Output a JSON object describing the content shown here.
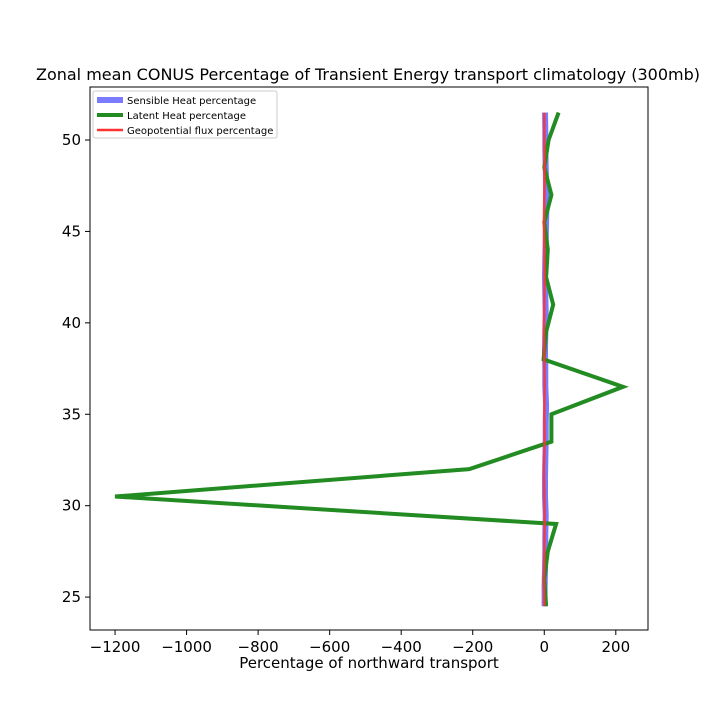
{
  "chart_data": {
    "type": "line",
    "title": "Zonal mean CONUS Percentage of Transient Energy transport climatology (300mb)",
    "xlabel": "Percentage of northward transport",
    "ylabel": "",
    "xlim": [
      -1270,
      290
    ],
    "ylim": [
      23.2,
      52.9
    ],
    "xticks": [
      -1200,
      -1000,
      -800,
      -600,
      -400,
      -200,
      0,
      200
    ],
    "xtick_labels": [
      "−1200",
      "−1000",
      "−800",
      "−600",
      "−400",
      "−200",
      "0",
      "200"
    ],
    "yticks": [
      25,
      30,
      35,
      40,
      45,
      50
    ],
    "ytick_labels": [
      "25",
      "30",
      "35",
      "40",
      "45",
      "50"
    ],
    "grid": false,
    "legend_position": "top-left",
    "series": [
      {
        "name": "Sensible Heat percentage",
        "color": "#7b7bff",
        "x": [
          1,
          1,
          2,
          3,
          3,
          4,
          2,
          2,
          3,
          4,
          4,
          5,
          3,
          3,
          2,
          3,
          4,
          3,
          2,
          3,
          4,
          5,
          6,
          5,
          4,
          3,
          3,
          2
        ],
        "y": [
          24.5,
          25.5,
          26.5,
          27.5,
          28.5,
          29.5,
          30.5,
          31.5,
          32.5,
          33.5,
          34.5,
          35.5,
          36.5,
          37.5,
          38.5,
          39.5,
          40.5,
          41.5,
          42.5,
          43.5,
          44.5,
          45.5,
          46.5,
          47.5,
          48.5,
          49.5,
          50.5,
          51.5
        ]
      },
      {
        "name": "Latent Heat percentage",
        "color": "#228b22",
        "x": [
          5,
          0,
          10,
          33,
          -1200,
          -210,
          20,
          20,
          220,
          -2,
          5,
          25,
          5,
          10,
          0,
          20,
          0,
          12,
          40
        ],
        "y": [
          24.5,
          26,
          27.5,
          29,
          30.5,
          32,
          33.5,
          35,
          36.5,
          38,
          39.5,
          41,
          42.5,
          44,
          45.5,
          47,
          48.5,
          50,
          51.5
        ]
      },
      {
        "name": "Geopotential flux percentage",
        "color": "#ff3333",
        "x": [
          0,
          -1,
          0,
          1,
          0,
          -1,
          1,
          0,
          1,
          0,
          -1,
          0,
          1,
          0,
          -1,
          0,
          1,
          0,
          0
        ],
        "y": [
          24.5,
          26,
          27.5,
          29,
          30.5,
          32,
          33.5,
          35,
          36.5,
          38,
          39.5,
          41,
          42.5,
          44,
          45.5,
          47,
          48.5,
          50,
          51.5
        ]
      }
    ]
  }
}
